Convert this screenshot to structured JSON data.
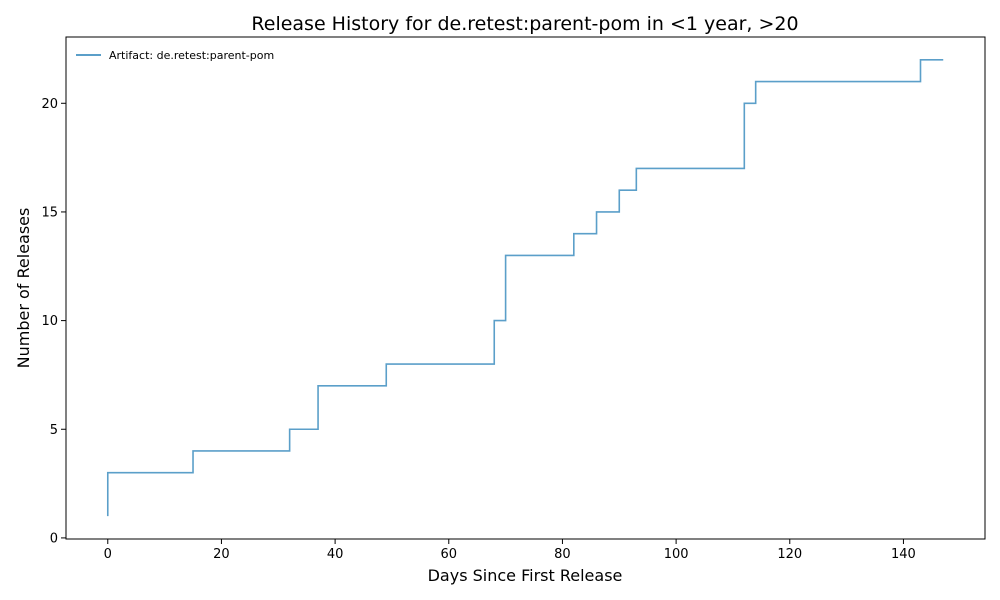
{
  "chart_data": {
    "type": "line",
    "step": "post",
    "title": "Release History for de.retest:parent-pom in <1 year, >20",
    "xlabel": "Days Since First Release",
    "ylabel": "Number of Releases",
    "xlim": [
      -7.35,
      154.35
    ],
    "ylim": [
      -0.05,
      23.05
    ],
    "xticks": [
      0,
      20,
      40,
      60,
      80,
      100,
      120,
      140
    ],
    "yticks": [
      0,
      5,
      10,
      15,
      20
    ],
    "grid": false,
    "legend_position": "top-left",
    "series": [
      {
        "name": "Artifact: de.retest:parent-pom",
        "color": "#5b9fc9",
        "x": [
          0,
          0,
          15,
          32,
          37,
          49,
          68,
          70,
          82,
          86,
          90,
          93,
          112,
          114,
          143,
          147
        ],
        "y": [
          1,
          3,
          4,
          5,
          7,
          8,
          10,
          13,
          14,
          15,
          16,
          17,
          20,
          21,
          22,
          22
        ]
      }
    ]
  }
}
